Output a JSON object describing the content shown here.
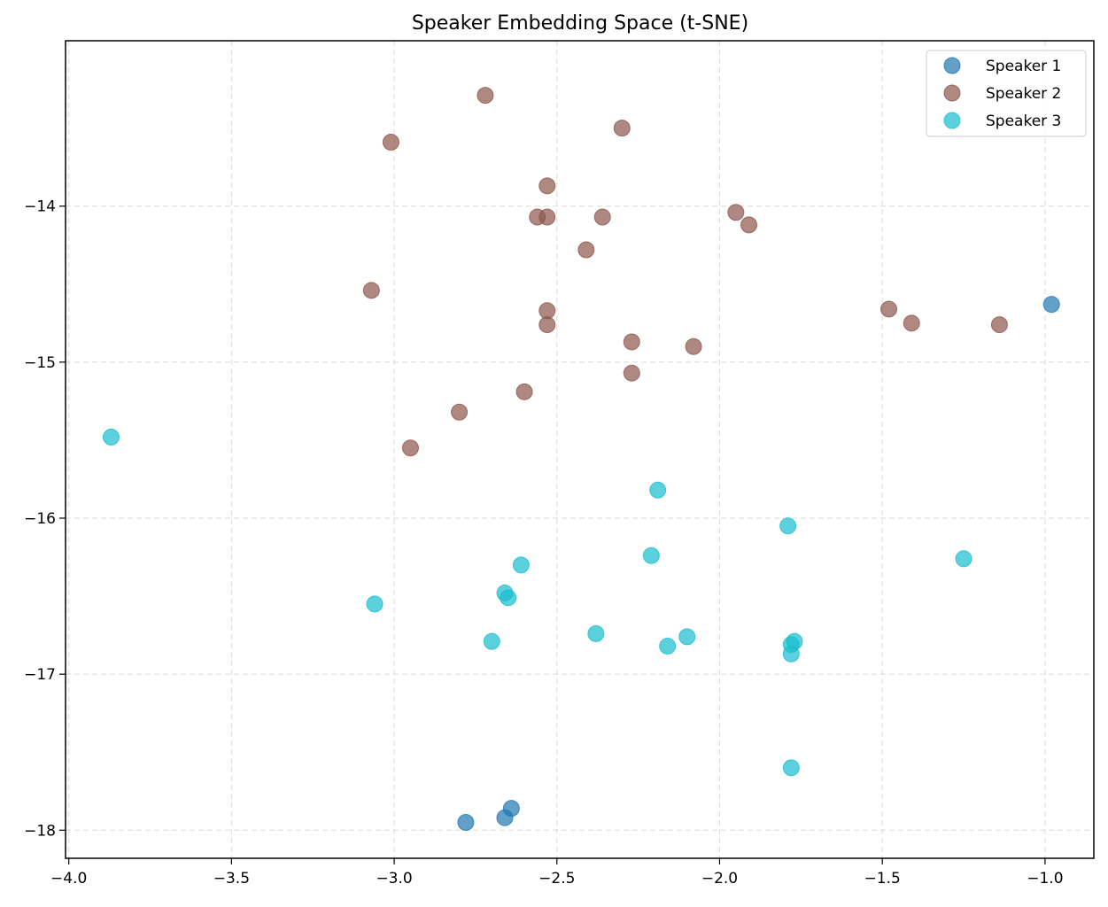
{
  "chart_data": {
    "type": "scatter",
    "title": "Speaker Embedding Space (t-SNE)",
    "xlabel": "",
    "ylabel": "",
    "xlim": [
      -4.01,
      -0.85
    ],
    "ylim": [
      -18.18,
      -12.94
    ],
    "xticks": [
      -4.0,
      -3.5,
      -3.0,
      -2.5,
      -2.0,
      -1.5,
      -1.0
    ],
    "xtick_labels": [
      "−4.0",
      "−3.5",
      "−3.0",
      "−2.5",
      "−2.0",
      "−1.5",
      "−1.0"
    ],
    "yticks": [
      -18,
      -17,
      -16,
      -15,
      -14
    ],
    "ytick_labels": [
      "−18",
      "−17",
      "−16",
      "−15",
      "−14"
    ],
    "grid": true,
    "legend_position": "top-right",
    "series": [
      {
        "name": "Speaker 1",
        "color": "#1f77b4",
        "points": [
          [
            -0.98,
            -14.63
          ],
          [
            -2.78,
            -17.95
          ],
          [
            -2.66,
            -17.92
          ],
          [
            -2.64,
            -17.86
          ]
        ]
      },
      {
        "name": "Speaker 2",
        "color": "#8c564b",
        "points": [
          [
            -2.72,
            -13.29
          ],
          [
            -3.01,
            -13.59
          ],
          [
            -2.3,
            -13.5
          ],
          [
            -2.53,
            -13.87
          ],
          [
            -2.56,
            -14.07
          ],
          [
            -2.53,
            -14.07
          ],
          [
            -2.36,
            -14.07
          ],
          [
            -1.95,
            -14.04
          ],
          [
            -1.91,
            -14.12
          ],
          [
            -2.41,
            -14.28
          ],
          [
            -3.07,
            -14.54
          ],
          [
            -2.53,
            -14.67
          ],
          [
            -2.53,
            -14.76
          ],
          [
            -2.27,
            -14.87
          ],
          [
            -2.08,
            -14.9
          ],
          [
            -1.48,
            -14.66
          ],
          [
            -1.41,
            -14.75
          ],
          [
            -1.14,
            -14.76
          ],
          [
            -2.27,
            -15.07
          ],
          [
            -2.6,
            -15.19
          ],
          [
            -2.8,
            -15.32
          ],
          [
            -2.95,
            -15.55
          ]
        ]
      },
      {
        "name": "Speaker 3",
        "color": "#17becf",
        "points": [
          [
            -3.87,
            -15.48
          ],
          [
            -2.19,
            -15.82
          ],
          [
            -1.79,
            -16.05
          ],
          [
            -2.21,
            -16.24
          ],
          [
            -1.25,
            -16.26
          ],
          [
            -2.61,
            -16.3
          ],
          [
            -2.66,
            -16.48
          ],
          [
            -2.65,
            -16.51
          ],
          [
            -3.06,
            -16.55
          ],
          [
            -2.7,
            -16.79
          ],
          [
            -2.38,
            -16.74
          ],
          [
            -2.16,
            -16.82
          ],
          [
            -2.1,
            -16.76
          ],
          [
            -1.77,
            -16.79
          ],
          [
            -1.78,
            -16.81
          ],
          [
            -1.78,
            -16.87
          ],
          [
            -1.78,
            -17.6
          ]
        ]
      }
    ]
  }
}
